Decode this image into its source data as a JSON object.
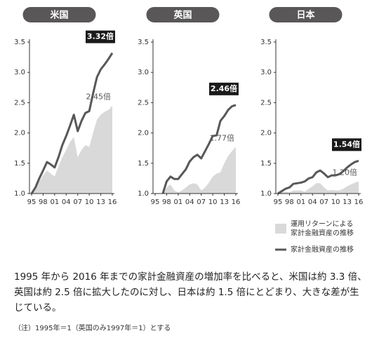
{
  "chart_data": [
    {
      "type": "area-line",
      "title": "米国",
      "categories": [
        "95",
        null,
        null,
        "98",
        null,
        null,
        "01",
        null,
        null,
        "04",
        null,
        null,
        "07",
        null,
        null,
        "10",
        null,
        null,
        "13",
        null,
        null,
        "16"
      ],
      "ylim": [
        1,
        3.5
      ],
      "yticks": [
        {
          "value": 1,
          "label": "1.0"
        },
        {
          "value": 1.5,
          "label": "1.5"
        },
        {
          "value": 2,
          "label": "2.0"
        },
        {
          "value": 2.5,
          "label": "2.5"
        },
        {
          "value": 3,
          "label": "3.0"
        },
        {
          "value": 3.5,
          "label": "3.5"
        }
      ],
      "series": [
        {
          "name": "運用リターンによる\n家計金融資産の推移",
          "kind": "area",
          "color": "#d9d9d9",
          "values": [
            1.0,
            1.1,
            1.2,
            1.3,
            1.38,
            1.33,
            1.28,
            1.45,
            1.6,
            1.72,
            1.85,
            1.93,
            1.6,
            1.72,
            1.8,
            1.77,
            2.0,
            2.22,
            2.3,
            2.35,
            2.38,
            2.45
          ],
          "value_labels": [
            null,
            null,
            null,
            null,
            null,
            null,
            null,
            null,
            null,
            null,
            null,
            null,
            null,
            null,
            null,
            null,
            null,
            null,
            null,
            null,
            null,
            "2.45倍"
          ]
        },
        {
          "name": "家計金融資産の推移",
          "kind": "line",
          "color": "#595757",
          "values": [
            1.0,
            1.1,
            1.25,
            1.38,
            1.52,
            1.48,
            1.43,
            1.6,
            1.8,
            1.95,
            2.12,
            2.3,
            2.03,
            2.2,
            2.33,
            2.36,
            2.65,
            2.92,
            3.05,
            3.13,
            3.22,
            3.32
          ],
          "value_labels": [
            null,
            null,
            null,
            null,
            null,
            null,
            null,
            null,
            null,
            null,
            null,
            null,
            null,
            null,
            null,
            null,
            null,
            null,
            null,
            null,
            null,
            "3.32倍"
          ]
        }
      ]
    },
    {
      "type": "area-line",
      "title": "英国",
      "categories": [
        "95",
        null,
        null,
        "98",
        null,
        null,
        "01",
        null,
        null,
        "04",
        null,
        null,
        "07",
        null,
        null,
        "10",
        null,
        null,
        "13",
        null,
        null,
        "16"
      ],
      "ylim": [
        1,
        3.5
      ],
      "yticks": [
        {
          "value": 1,
          "label": "1.0"
        },
        {
          "value": 1.5,
          "label": "1.5"
        },
        {
          "value": 2,
          "label": "2.0"
        },
        {
          "value": 2.5,
          "label": "2.5"
        },
        {
          "value": 3,
          "label": "3.0"
        },
        {
          "value": 3.5,
          "label": "3.5"
        }
      ],
      "series": [
        {
          "kind": "area",
          "color": "#d9d9d9",
          "values": [
            null,
            null,
            1.0,
            1.1,
            1.15,
            1.05,
            1.02,
            1.05,
            1.1,
            1.15,
            1.17,
            1.15,
            1.05,
            1.1,
            1.18,
            1.28,
            1.33,
            1.35,
            1.5,
            1.62,
            1.7,
            1.77
          ],
          "value_labels": [
            null,
            null,
            null,
            null,
            null,
            null,
            null,
            null,
            null,
            null,
            null,
            null,
            null,
            null,
            null,
            null,
            null,
            null,
            null,
            null,
            null,
            "1.77倍"
          ]
        },
        {
          "kind": "line",
          "color": "#595757",
          "values": [
            null,
            null,
            1.0,
            1.2,
            1.28,
            1.24,
            1.24,
            1.32,
            1.4,
            1.53,
            1.6,
            1.64,
            1.58,
            1.7,
            1.82,
            1.95,
            1.96,
            2.2,
            2.28,
            2.38,
            2.44,
            2.46
          ],
          "value_labels": [
            null,
            null,
            null,
            null,
            null,
            null,
            null,
            null,
            null,
            null,
            null,
            null,
            null,
            null,
            null,
            null,
            null,
            null,
            null,
            null,
            null,
            "2.46倍"
          ]
        }
      ]
    },
    {
      "type": "area-line",
      "title": "日本",
      "categories": [
        "95",
        null,
        null,
        "98",
        null,
        null,
        "01",
        null,
        null,
        "04",
        null,
        null,
        "07",
        null,
        null,
        "10",
        null,
        null,
        "13",
        null,
        null,
        "16"
      ],
      "ylim": [
        1,
        3.5
      ],
      "yticks": [
        {
          "value": 1,
          "label": "1.0"
        },
        {
          "value": 1.5,
          "label": "1.5"
        },
        {
          "value": 2,
          "label": "2.0"
        },
        {
          "value": 2.5,
          "label": "2.5"
        },
        {
          "value": 3,
          "label": "3.0"
        },
        {
          "value": 3.5,
          "label": "3.5"
        }
      ],
      "series": [
        {
          "kind": "area",
          "color": "#d9d9d9",
          "values": [
            1.0,
            1.02,
            1.03,
            1.02,
            1.05,
            1.05,
            1.05,
            1.03,
            1.08,
            1.12,
            1.17,
            1.17,
            1.1,
            1.05,
            1.06,
            1.05,
            1.05,
            1.08,
            1.12,
            1.15,
            1.18,
            1.2
          ],
          "value_labels": [
            null,
            null,
            null,
            null,
            null,
            null,
            null,
            null,
            null,
            null,
            null,
            null,
            null,
            null,
            null,
            null,
            null,
            null,
            null,
            null,
            null,
            "1.20倍"
          ]
        },
        {
          "kind": "line",
          "color": "#595757",
          "values": [
            1.0,
            1.04,
            1.08,
            1.1,
            1.16,
            1.17,
            1.18,
            1.2,
            1.25,
            1.27,
            1.35,
            1.38,
            1.33,
            1.27,
            1.3,
            1.3,
            1.32,
            1.37,
            1.43,
            1.48,
            1.52,
            1.54
          ],
          "value_labels": [
            null,
            null,
            null,
            null,
            null,
            null,
            null,
            null,
            null,
            null,
            null,
            null,
            null,
            null,
            null,
            null,
            null,
            null,
            null,
            null,
            null,
            "1.54倍"
          ]
        }
      ]
    }
  ],
  "text": {
    "caption": "1995 年から 2016 年までの家計金融資産の増加率を比べると、米国は約 3.3 倍、英国は約 2.5 倍に拡大したのに対し、日本は約 1.5 倍にとどまり、大きな差が生じている。",
    "note": "（注）1995年＝1（英国のみ1997年＝1）とする"
  }
}
